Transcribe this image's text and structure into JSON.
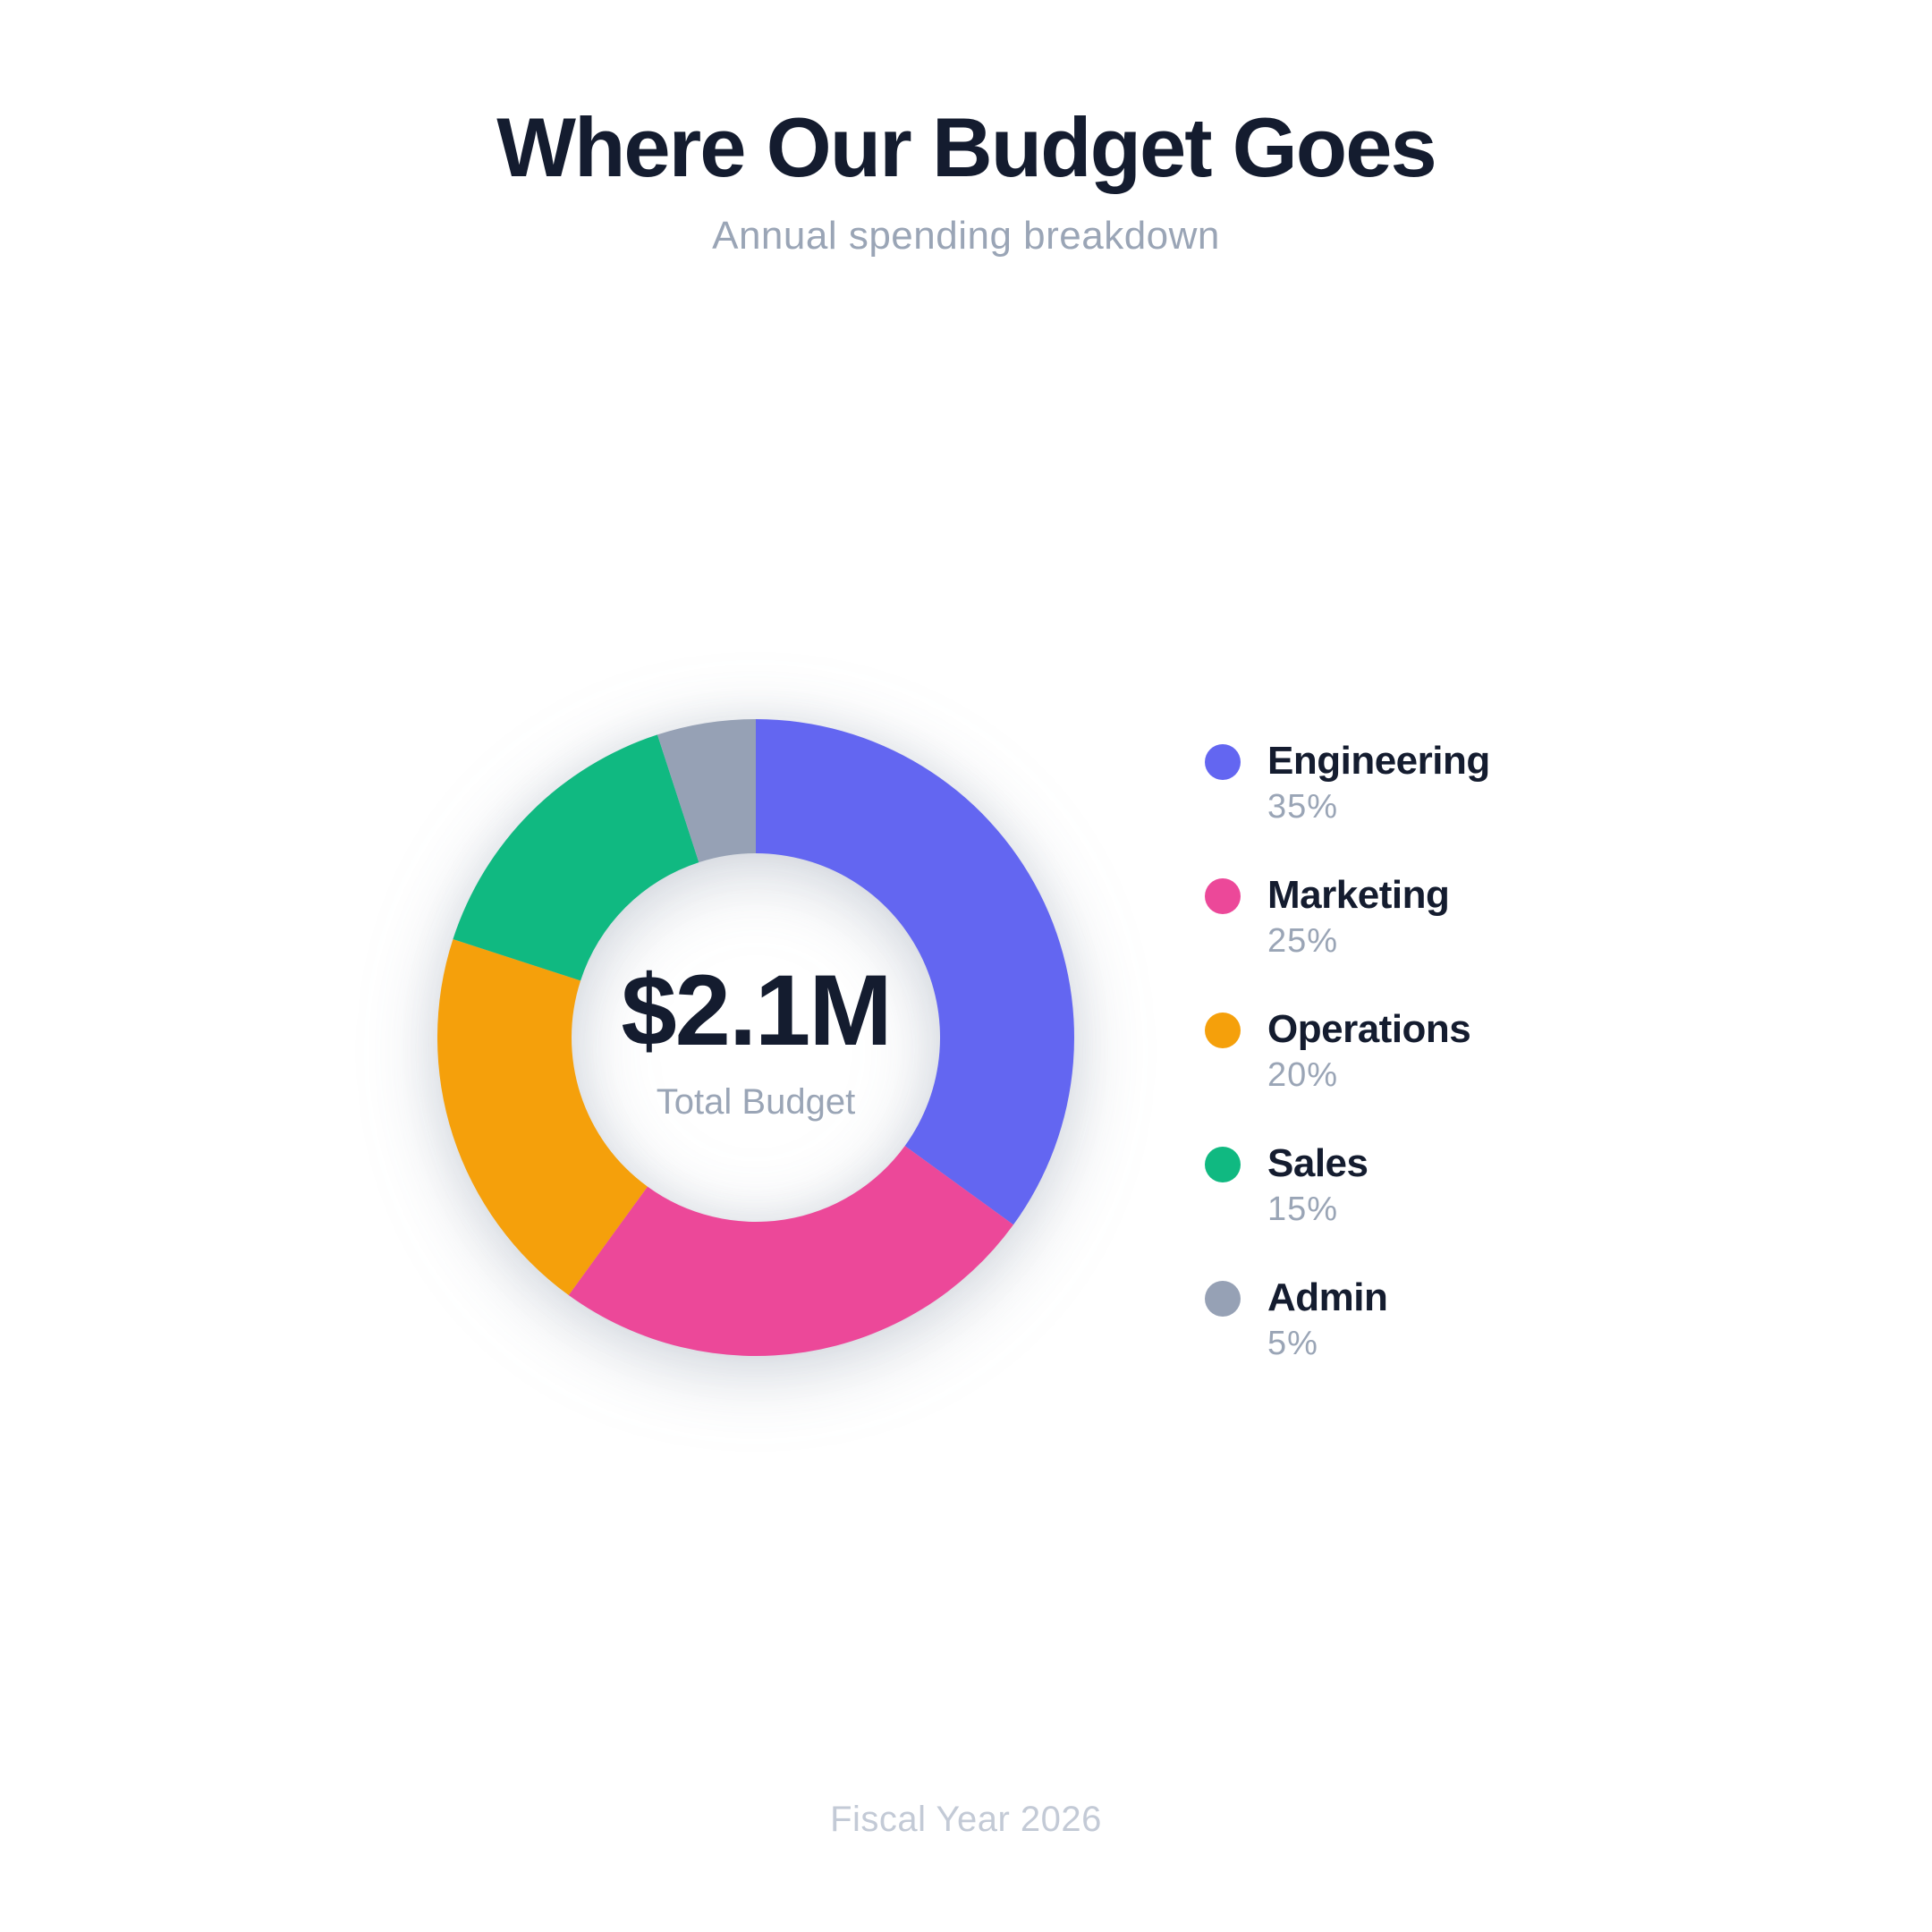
{
  "page": {
    "title": "Where Our Budget Goes",
    "subtitle": "Annual spending breakdown",
    "footer": "Fiscal Year 2026"
  },
  "theme": {
    "title_color": "#141C2F",
    "muted_color": "#9AA5B6",
    "percent_color": "#9AA5B6",
    "footer_color": "#C3CAD6",
    "page_bg": "#FFFFFF",
    "value_color": "#141C2F"
  },
  "chart_data": {
    "type": "pie",
    "variant": "donut",
    "title": "Where Our Budget Goes",
    "subtitle": "Annual spending breakdown",
    "center_label": {
      "value": "$2.1M",
      "caption": "Total Budget"
    },
    "start_angle_deg": 0,
    "direction": "clockwise",
    "inner_radius_ratio": 0.58,
    "legend_position": "right",
    "grid": false,
    "segments": [
      {
        "label": "Engineering",
        "value_pct": 35,
        "pct_label": "35%",
        "color": "#6366F1"
      },
      {
        "label": "Marketing",
        "value_pct": 25,
        "pct_label": "25%",
        "color": "#EC4899"
      },
      {
        "label": "Operations",
        "value_pct": 20,
        "pct_label": "20%",
        "color": "#F5A00B"
      },
      {
        "label": "Sales",
        "value_pct": 15,
        "pct_label": "15%",
        "color": "#10B981"
      },
      {
        "label": "Admin",
        "value_pct": 5,
        "pct_label": "5%",
        "color": "#96A1B5"
      }
    ]
  }
}
